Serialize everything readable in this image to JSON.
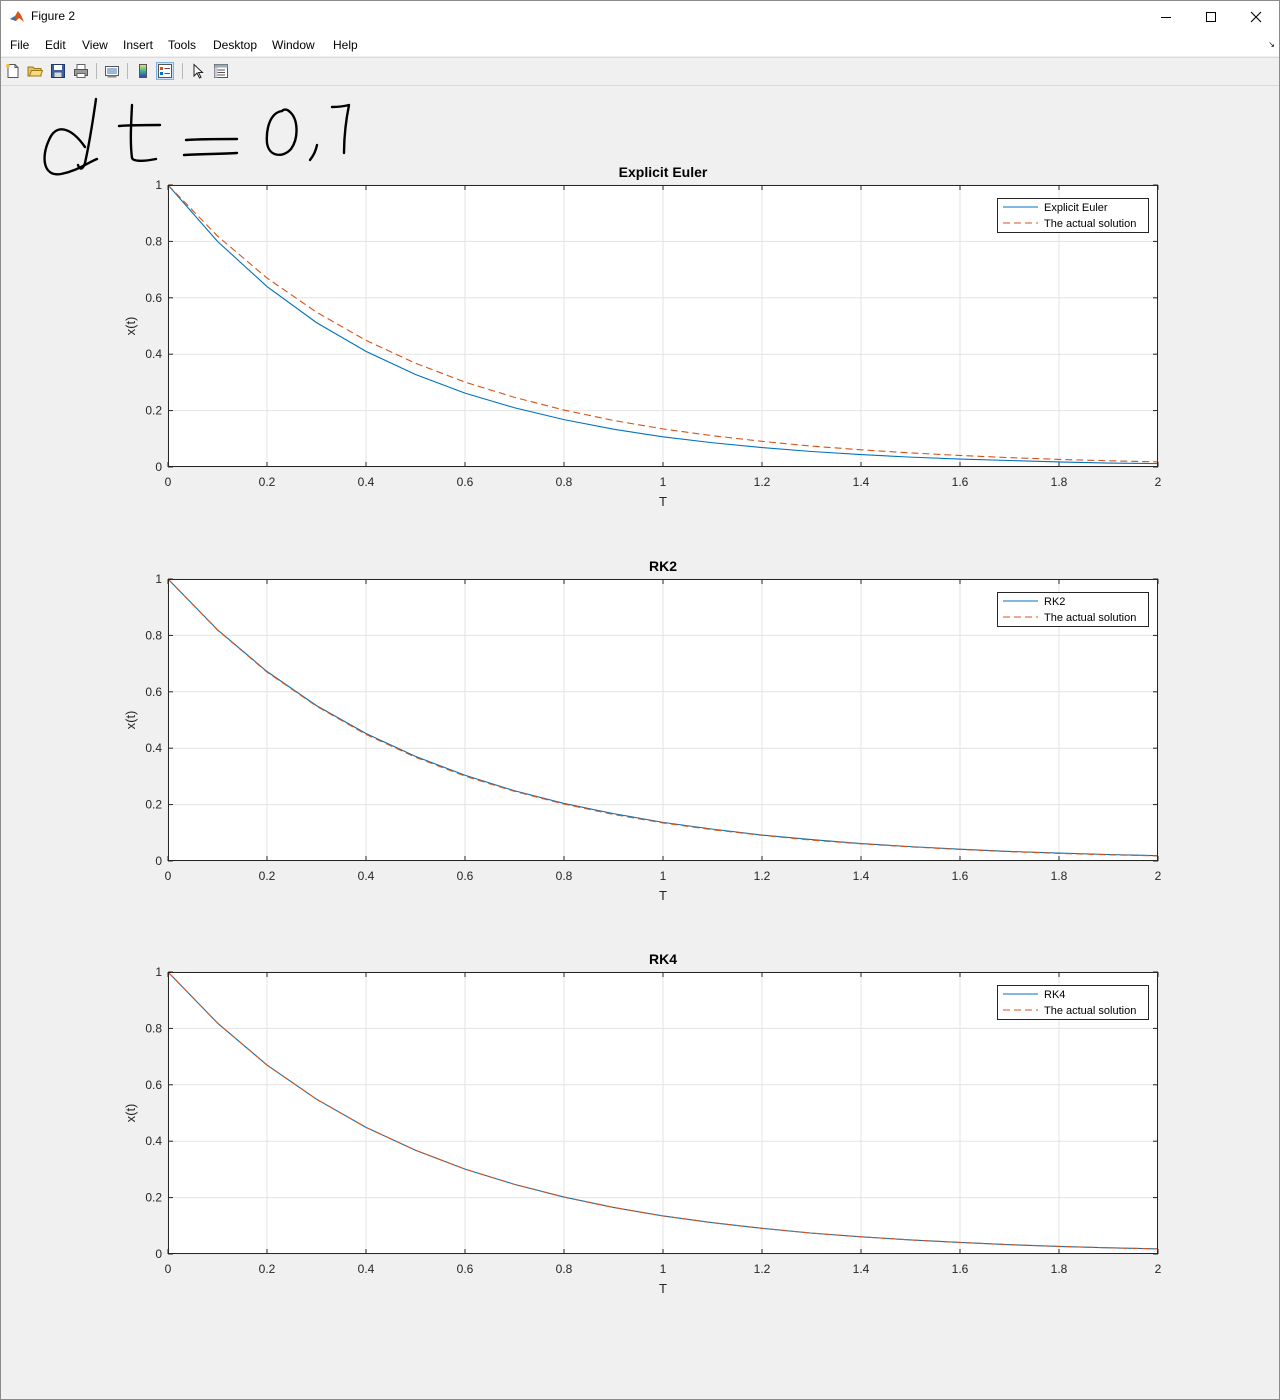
{
  "window": {
    "title": "Figure 2",
    "minimize": "minimize",
    "maximize": "maximize",
    "close": "close"
  },
  "menu": [
    "File",
    "Edit",
    "View",
    "Insert",
    "Tools",
    "Desktop",
    "Window",
    "Help"
  ],
  "toolbar": [
    "new-figure-icon",
    "open-file-icon",
    "save-icon",
    "print-icon",
    "link-plot-icon",
    "colorbar-icon",
    "legend-icon",
    "pointer-icon",
    "property-inspector-icon"
  ],
  "colors": {
    "series": "#0072bd",
    "actual": "#d95319",
    "grid": "#e3e3e3"
  },
  "chart_data": [
    {
      "type": "line",
      "title": "Explicit Euler",
      "xlabel": "T",
      "ylabel": "x(t)",
      "xlim": [
        0,
        2
      ],
      "ylim": [
        0,
        1
      ],
      "xticks": [
        "0",
        "0.2",
        "0.4",
        "0.6",
        "0.8",
        "1",
        "1.2",
        "1.4",
        "1.6",
        "1.8",
        "2"
      ],
      "yticks": [
        "0",
        "0.2",
        "0.4",
        "0.6",
        "0.8",
        "1"
      ],
      "grid": true,
      "legend_position": "top-right",
      "x": [
        0,
        0.1,
        0.2,
        0.3,
        0.4,
        0.5,
        0.6,
        0.7,
        0.8,
        0.9,
        1.0,
        1.1,
        1.2,
        1.3,
        1.4,
        1.5,
        1.6,
        1.7,
        1.8,
        1.9,
        2.0
      ],
      "series": [
        {
          "name": "Explicit Euler",
          "style": "solid",
          "values": [
            1,
            0.8,
            0.64,
            0.512,
            0.41,
            0.328,
            0.262,
            0.21,
            0.168,
            0.134,
            0.107,
            0.086,
            0.069,
            0.055,
            0.044,
            0.035,
            0.028,
            0.023,
            0.018,
            0.014,
            0.012
          ]
        },
        {
          "name": "The actual solution",
          "style": "dashed",
          "values": [
            1,
            0.819,
            0.67,
            0.549,
            0.449,
            0.368,
            0.301,
            0.247,
            0.202,
            0.165,
            0.135,
            0.111,
            0.091,
            0.074,
            0.061,
            0.05,
            0.041,
            0.033,
            0.027,
            0.022,
            0.018
          ]
        }
      ]
    },
    {
      "type": "line",
      "title": "RK2",
      "xlabel": "T",
      "ylabel": "x(t)",
      "xlim": [
        0,
        2
      ],
      "ylim": [
        0,
        1
      ],
      "xticks": [
        "0",
        "0.2",
        "0.4",
        "0.6",
        "0.8",
        "1",
        "1.2",
        "1.4",
        "1.6",
        "1.8",
        "2"
      ],
      "yticks": [
        "0",
        "0.2",
        "0.4",
        "0.6",
        "0.8",
        "1"
      ],
      "grid": true,
      "legend_position": "top-right",
      "x": [
        0,
        0.1,
        0.2,
        0.3,
        0.4,
        0.5,
        0.6,
        0.7,
        0.8,
        0.9,
        1.0,
        1.1,
        1.2,
        1.3,
        1.4,
        1.5,
        1.6,
        1.7,
        1.8,
        1.9,
        2.0
      ],
      "series": [
        {
          "name": "RK2",
          "style": "solid",
          "values": [
            1,
            0.82,
            0.672,
            0.551,
            0.452,
            0.371,
            0.304,
            0.249,
            0.204,
            0.168,
            0.137,
            0.113,
            0.092,
            0.076,
            0.062,
            0.051,
            0.042,
            0.034,
            0.028,
            0.023,
            0.019
          ]
        },
        {
          "name": "The actual solution",
          "style": "dashed",
          "values": [
            1,
            0.819,
            0.67,
            0.549,
            0.449,
            0.368,
            0.301,
            0.247,
            0.202,
            0.165,
            0.135,
            0.111,
            0.091,
            0.074,
            0.061,
            0.05,
            0.041,
            0.033,
            0.027,
            0.022,
            0.018
          ]
        }
      ]
    },
    {
      "type": "line",
      "title": "RK4",
      "xlabel": "T",
      "ylabel": "x(t)",
      "xlim": [
        0,
        2
      ],
      "ylim": [
        0,
        1
      ],
      "xticks": [
        "0",
        "0.2",
        "0.4",
        "0.6",
        "0.8",
        "1",
        "1.2",
        "1.4",
        "1.6",
        "1.8",
        "2"
      ],
      "yticks": [
        "0",
        "0.2",
        "0.4",
        "0.6",
        "0.8",
        "1"
      ],
      "grid": true,
      "legend_position": "top-right",
      "x": [
        0,
        0.1,
        0.2,
        0.3,
        0.4,
        0.5,
        0.6,
        0.7,
        0.8,
        0.9,
        1.0,
        1.1,
        1.2,
        1.3,
        1.4,
        1.5,
        1.6,
        1.7,
        1.8,
        1.9,
        2.0
      ],
      "series": [
        {
          "name": "RK4",
          "style": "solid",
          "values": [
            1,
            0.819,
            0.67,
            0.549,
            0.449,
            0.368,
            0.301,
            0.247,
            0.202,
            0.165,
            0.135,
            0.111,
            0.091,
            0.074,
            0.061,
            0.05,
            0.041,
            0.033,
            0.027,
            0.022,
            0.018
          ]
        },
        {
          "name": "The actual solution",
          "style": "dashed",
          "values": [
            1,
            0.819,
            0.67,
            0.549,
            0.449,
            0.368,
            0.301,
            0.247,
            0.202,
            0.165,
            0.135,
            0.111,
            0.091,
            0.074,
            0.061,
            0.05,
            0.041,
            0.033,
            0.027,
            0.022,
            0.018
          ]
        }
      ]
    }
  ]
}
